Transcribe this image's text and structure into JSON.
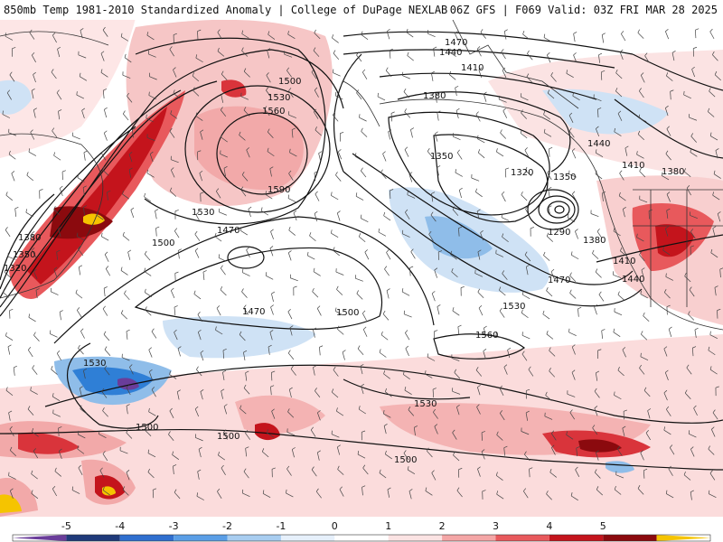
{
  "header": {
    "title_left": "850mb Temp 1981-2010 Standardized Anomaly | College of DuPage NEXLAB",
    "title_right": "06Z GFS | F069 Valid: 03Z FRI MAR 28 2025"
  },
  "colorbar": {
    "ticks": [
      "-5",
      "-4",
      "-3",
      "-2",
      "-1",
      "0",
      "1",
      "2",
      "3",
      "4",
      "5"
    ],
    "colors": [
      "#6a3d9a",
      "#1f3a7a",
      "#2f6fcf",
      "#5a9ee6",
      "#a8cdf0",
      "#e6f0fb",
      "#ffffff",
      "#fbe3e3",
      "#f4a6a6",
      "#e8595c",
      "#c4141c",
      "#8b0a0e",
      "#f5c400"
    ]
  },
  "colors": {
    "warm_light": "#fbd9d9",
    "warm_mid": "#f2a9a9",
    "warm_strong": "#d9343b",
    "warm_extreme": "#8b0a0e",
    "cold_light": "#cfe2f5",
    "cold_mid": "#8fbde9",
    "cold_strong": "#2f7fd6",
    "cold_extreme": "#6a3d9a",
    "hot_spot": "#f5c400",
    "contour": "#111111"
  },
  "contour_labels": [
    "1470",
    "1440",
    "1410",
    "1380",
    "1350",
    "1320",
    "1290",
    "1500",
    "1530",
    "1560",
    "1590",
    "1470",
    "1500",
    "1530",
    "1560",
    "1380",
    "1350",
    "1320",
    "1440",
    "1410",
    "1380",
    "1350",
    "1380",
    "1410",
    "1440",
    "1470",
    "1530",
    "1500",
    "1530",
    "1500",
    "1500",
    "1530",
    "1470",
    "1500"
  ]
}
